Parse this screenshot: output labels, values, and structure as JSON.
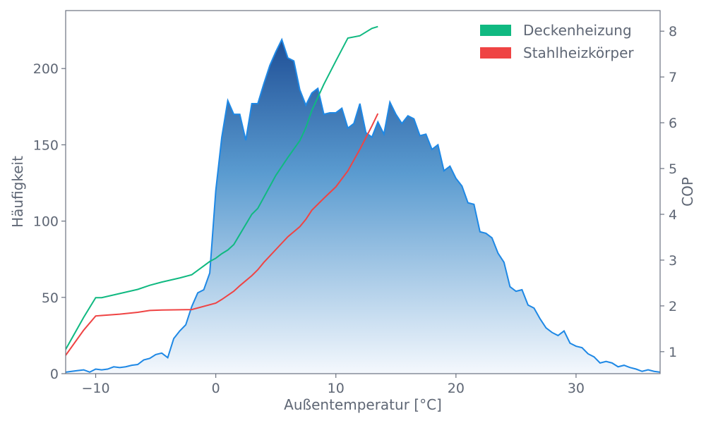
{
  "chart_data": {
    "type": "area",
    "title": "",
    "xlabel": "Außentemperatur [°C]",
    "ylabel_left": "Häufigkeit",
    "ylabel_right": "COP",
    "xlim": [
      -12.5,
      37.0
    ],
    "ylim_left": [
      0,
      238
    ],
    "ylim_right": [
      0.52,
      8.45
    ],
    "xticks": [
      -10,
      0,
      10,
      20,
      30
    ],
    "xtick_labels": [
      "−10",
      "0",
      "10",
      "20",
      "30"
    ],
    "yticks_left": [
      0,
      50,
      100,
      150,
      200
    ],
    "yticks_right": [
      1,
      2,
      3,
      4,
      5,
      6,
      7,
      8
    ],
    "grid": false,
    "legend_position": "top-right",
    "colors": {
      "frequency_line": "#1e88e5",
      "frequency_fill_top": "#1f4f96",
      "frequency_fill_bottom": "#f4f8fd",
      "axis": "#6b7280",
      "deckenheizung": "#10b981",
      "stahlheizkoerper": "#ef4444"
    },
    "frequency": {
      "x": [
        -12.5,
        -12,
        -11.5,
        -11,
        -10.5,
        -10,
        -9.5,
        -9,
        -8.5,
        -8,
        -7.5,
        -7,
        -6.5,
        -6,
        -5.5,
        -5,
        -4.5,
        -4,
        -3.5,
        -3,
        -2.5,
        -2,
        -1.5,
        -1,
        -0.5,
        0,
        0.5,
        1,
        1.5,
        2,
        2.5,
        3,
        3.5,
        4,
        4.5,
        5,
        5.5,
        6,
        6.5,
        7,
        7.5,
        8,
        8.5,
        9,
        9.5,
        10,
        10.5,
        11,
        11.5,
        12,
        12.5,
        13,
        13.5,
        14,
        14.5,
        15,
        15.5,
        16,
        16.5,
        17,
        17.5,
        18,
        18.5,
        19,
        19.5,
        20,
        20.5,
        21,
        21.5,
        22,
        22.5,
        23,
        23.5,
        24,
        24.5,
        25,
        25.5,
        26,
        26.5,
        27,
        27.5,
        28,
        28.5,
        29,
        29.5,
        30,
        30.5,
        31,
        31.5,
        32,
        32.5,
        33,
        33.5,
        34,
        34.5,
        35,
        35.5,
        36,
        36.5,
        37
      ],
      "values": [
        1,
        1.5,
        2,
        2.5,
        1,
        3,
        2.5,
        3,
        4.5,
        4,
        4.5,
        5.5,
        6,
        9,
        10,
        12.5,
        13.5,
        10.5,
        23,
        28,
        32,
        44,
        53,
        55,
        66,
        120,
        155,
        179,
        170,
        170,
        153,
        177,
        177,
        190,
        202,
        211,
        219,
        207,
        205,
        186,
        176,
        184,
        187,
        170,
        171,
        171,
        174,
        161,
        164,
        177,
        158,
        155,
        165,
        157,
        178,
        170,
        164,
        169,
        167,
        156,
        157,
        147,
        150,
        133,
        136,
        128,
        123,
        112,
        111,
        93,
        92,
        89,
        79,
        73,
        57,
        54,
        55,
        45,
        43,
        36,
        30,
        27,
        25,
        28,
        20,
        18,
        17,
        13,
        11,
        7,
        8,
        7,
        4.5,
        5.5,
        4,
        3,
        1.5,
        2.5,
        1.5,
        1
      ]
    },
    "series": [
      {
        "name": "Deckenheizung",
        "x": [
          -12.5,
          -11,
          -10,
          -9.5,
          -8,
          -6.5,
          -5.5,
          -4.5,
          -3,
          -2,
          -0.5,
          0,
          0.5,
          1,
          1.5,
          2,
          3,
          3.5,
          4,
          5,
          6,
          7,
          7.5,
          8,
          9,
          10,
          11,
          12,
          13,
          13.5
        ],
        "values": [
          1.05,
          1.75,
          2.18,
          2.18,
          2.27,
          2.36,
          2.45,
          2.52,
          2.61,
          2.68,
          2.97,
          3.04,
          3.14,
          3.22,
          3.34,
          3.56,
          4.0,
          4.13,
          4.37,
          4.85,
          5.24,
          5.61,
          5.89,
          6.27,
          6.84,
          7.35,
          7.85,
          7.9,
          8.06,
          8.1
        ],
        "label_printed": "Deckenheizung"
      },
      {
        "name": "Stahlheizkörper",
        "x": [
          -12.5,
          -11,
          -10,
          -9.5,
          -8,
          -6.5,
          -5.5,
          -4.5,
          -2,
          0,
          0.5,
          1,
          1.5,
          2,
          3,
          3.5,
          4,
          5,
          6,
          7,
          7.5,
          8,
          9,
          10,
          11,
          12,
          13,
          13.5
        ],
        "values": [
          0.92,
          1.47,
          1.78,
          1.79,
          1.82,
          1.86,
          1.9,
          1.91,
          1.92,
          2.06,
          2.14,
          2.23,
          2.32,
          2.44,
          2.66,
          2.79,
          2.95,
          3.23,
          3.51,
          3.73,
          3.89,
          4.09,
          4.35,
          4.6,
          4.95,
          5.42,
          5.93,
          6.2
        ],
        "label_printed": "Stahlheizkörper"
      }
    ]
  }
}
